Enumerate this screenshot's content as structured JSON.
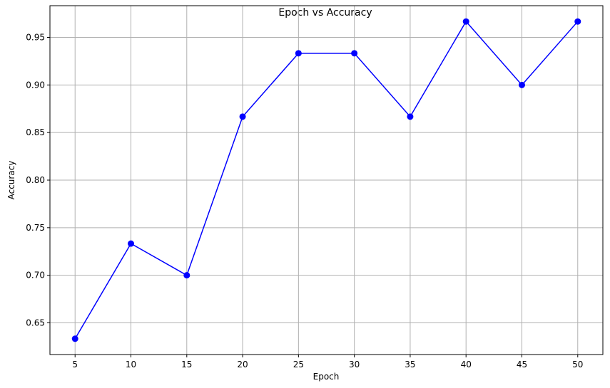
{
  "chart_data": {
    "type": "line",
    "title": "Epoch vs Accuracy",
    "xlabel": "Epoch",
    "ylabel": "Accuracy",
    "x": [
      5,
      10,
      15,
      20,
      25,
      30,
      35,
      40,
      45,
      50
    ],
    "series": [
      {
        "values": [
          0.6333,
          0.7333,
          0.7,
          0.8667,
          0.9333,
          0.9333,
          0.8667,
          0.9667,
          0.9,
          0.9667
        ],
        "color": "#0000ff",
        "marker": "circle"
      }
    ],
    "xticks": [
      "5",
      "10",
      "15",
      "20",
      "25",
      "30",
      "35",
      "40",
      "45",
      "50"
    ],
    "yticks": [
      "0.65",
      "0.70",
      "0.75",
      "0.80",
      "0.85",
      "0.90",
      "0.95"
    ],
    "xlim": [
      2.75,
      52.25
    ],
    "ylim": [
      0.6167,
      0.9833
    ],
    "grid": true,
    "colors": {
      "grid": "#b0b0b0",
      "axes": "#000000"
    }
  }
}
